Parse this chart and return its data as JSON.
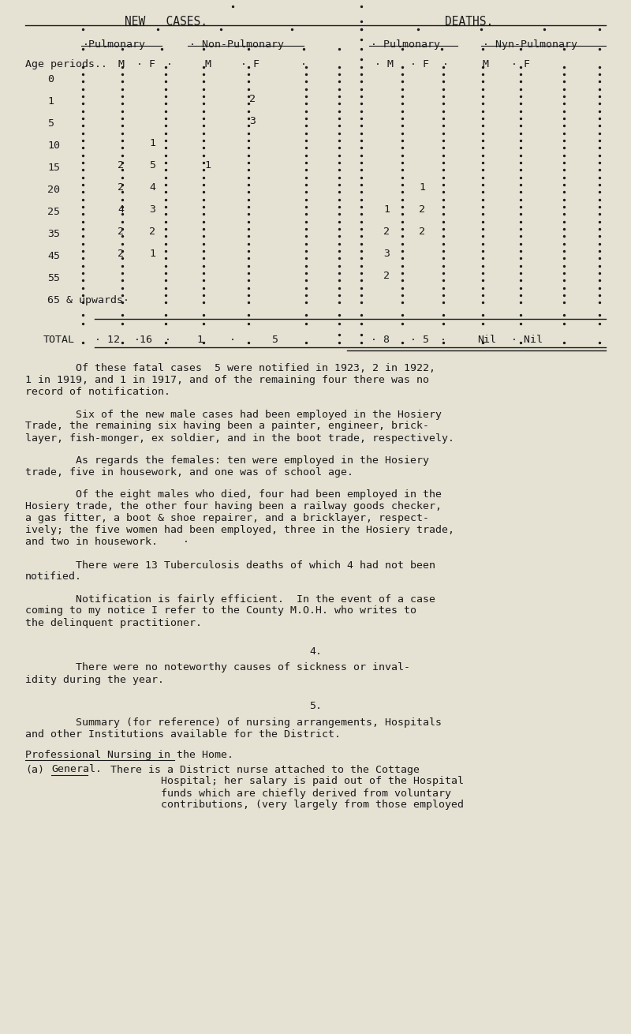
{
  "bg_color": "#e5e1d3",
  "text_color": "#1a1a1a",
  "paragraphs": [
    "        Of these fatal cases  5 were notified in 1923, 2 in 1922,\n1 in 1919, and 1 in 1917, and of the remaining four there was no\nrecord of notification.",
    "        Six of the new male cases had been employed in the Hosiery\nTrade, the remaining six having been a painter, engineer, brick-\nlayer, fish-monger, ex soldier, and in the boot trade, respectively.",
    "        As regards the females: ten were employed in the Hosiery\ntrade, five in housework, and one was of school age.",
    "        Of the eight males who died, four had been employed in the\nHosiery trade, the other four having been a railway goods checker,\na gas fitter, a boot & shoe repairer, and a bricklayer, respect-\nively; the five women had been employed, three in the Hosiery trade,\nand two in housework.    ·",
    "        There were 13 Tuberculosis deaths of which 4 had not been\nnotified.",
    "        Notification is fairly efficient.  In the event of a case\ncoming to my notice I refer to the County M.O.H. who writes to\nthe delinquent practitioner."
  ],
  "section4_title": "4.",
  "section4_text": "        There were no noteworthy causes of sickness or inval-\nidity during the year.",
  "section5_title": "5.",
  "section5_text": "        Summary (for reference) of nursing arrangements, Hospitals\nand other Institutions available for the District.",
  "section5b_title": "Professional Nursing in the Home.",
  "section5b_label_a": "(a)",
  "section5b_label_b": "General.",
  "section5b_body": "There is a District nurse attached to the Cottage\n        Hospital; her salary is paid out of the Hospital\n        funds which are chiefly derived from voluntary\n        contributions, (very largely from those employed",
  "table_data": {
    "0": {
      "nc_pulm_m": "",
      "nc_pulm_f": "",
      "nc_npulm_m": "",
      "nc_npulm_f": "",
      "d_pulm_m": "",
      "d_pulm_f": "",
      "d_npulm_m": "",
      "d_npulm_f": ""
    },
    "1": {
      "nc_pulm_m": "",
      "nc_pulm_f": "",
      "nc_npulm_m": "",
      "nc_npulm_f": "2",
      "d_pulm_m": "",
      "d_pulm_f": "",
      "d_npulm_m": "",
      "d_npulm_f": ""
    },
    "5": {
      "nc_pulm_m": "",
      "nc_pulm_f": "",
      "nc_npulm_m": "",
      "nc_npulm_f": "3",
      "d_pulm_m": "",
      "d_pulm_f": "",
      "d_npulm_m": "",
      "d_npulm_f": ""
    },
    "10": {
      "nc_pulm_m": "",
      "nc_pulm_f": "1",
      "nc_npulm_m": "",
      "nc_npulm_f": "",
      "d_pulm_m": "",
      "d_pulm_f": "",
      "d_npulm_m": "",
      "d_npulm_f": ""
    },
    "15": {
      "nc_pulm_m": "2",
      "nc_pulm_f": "5",
      "nc_npulm_m": "1",
      "nc_npulm_f": "",
      "d_pulm_m": "",
      "d_pulm_f": "",
      "d_npulm_m": "",
      "d_npulm_f": ""
    },
    "20": {
      "nc_pulm_m": "2",
      "nc_pulm_f": "4",
      "nc_npulm_m": "",
      "nc_npulm_f": "",
      "d_pulm_m": "",
      "d_pulm_f": "1",
      "d_npulm_m": "",
      "d_npulm_f": ""
    },
    "25": {
      "nc_pulm_m": "4",
      "nc_pulm_f": "3",
      "nc_npulm_m": "",
      "nc_npulm_f": "",
      "d_pulm_m": "1",
      "d_pulm_f": "2",
      "d_npulm_m": "",
      "d_npulm_f": ""
    },
    "35": {
      "nc_pulm_m": "2",
      "nc_pulm_f": "2",
      "nc_npulm_m": "",
      "nc_npulm_f": "",
      "d_pulm_m": "2",
      "d_pulm_f": "2",
      "d_npulm_m": "",
      "d_npulm_f": ""
    },
    "45": {
      "nc_pulm_m": "2",
      "nc_pulm_f": "1",
      "nc_npulm_m": "",
      "nc_npulm_f": "",
      "d_pulm_m": "3",
      "d_pulm_f": "",
      "d_npulm_m": "",
      "d_npulm_f": ""
    },
    "55": {
      "nc_pulm_m": "",
      "nc_pulm_f": "",
      "nc_npulm_m": "",
      "nc_npulm_f": "",
      "d_pulm_m": "2",
      "d_pulm_f": "",
      "d_npulm_m": "",
      "d_npulm_f": ""
    },
    "65": {
      "nc_pulm_m": "",
      "nc_pulm_f": "",
      "nc_npulm_m": "",
      "nc_npulm_f": "",
      "d_pulm_m": "",
      "d_pulm_f": "",
      "d_npulm_m": "",
      "d_npulm_f": ""
    }
  }
}
